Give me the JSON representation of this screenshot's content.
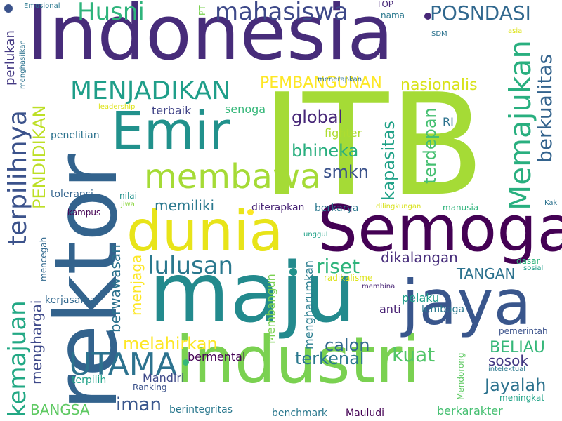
{
  "words": [
    {
      "text": "ITB",
      "color": "#a5db36",
      "vertical": false
    },
    {
      "text": "Indonesia",
      "color": "#472c7a",
      "vertical": false
    },
    {
      "text": "rektor",
      "color": "#33638d",
      "vertical": true
    },
    {
      "text": "maju",
      "color": "#238a8d",
      "vertical": false
    },
    {
      "text": "industri",
      "color": "#7ad151",
      "vertical": false
    },
    {
      "text": "Semoga",
      "color": "#440154",
      "vertical": false
    },
    {
      "text": "jaya",
      "color": "#39568c",
      "vertical": false
    },
    {
      "text": "dunia",
      "color": "#e8e419",
      "vertical": false
    },
    {
      "text": "Emir",
      "color": "#21918c",
      "vertical": false
    },
    {
      "text": "membawa",
      "color": "#a5db36",
      "vertical": false
    },
    {
      "text": "UTAMA",
      "color": "#2c728e",
      "vertical": false
    },
    {
      "text": "Memajukan",
      "color": "#29af7f",
      "vertical": true
    },
    {
      "text": "kemajuan",
      "color": "#22a884",
      "vertical": true
    },
    {
      "text": "terpilihnya",
      "color": "#3b528b",
      "vertical": true
    },
    {
      "text": "MENJADIKAN",
      "color": "#1f9e89",
      "vertical": false
    },
    {
      "text": "mahasiswa",
      "color": "#3e4989",
      "vertical": false
    },
    {
      "text": "lulusan",
      "color": "#2a788e",
      "vertical": false
    },
    {
      "text": "Husni",
      "color": "#2fb47c",
      "vertical": false
    },
    {
      "text": "POSNDASI",
      "color": "#31688e",
      "vertical": false
    },
    {
      "text": "berkualitas",
      "color": "#33638d",
      "vertical": true
    },
    {
      "text": "kapasitas",
      "color": "#1fa187",
      "vertical": true
    },
    {
      "text": "terdepan",
      "color": "#44bf70",
      "vertical": true
    },
    {
      "text": "global",
      "color": "#482878",
      "vertical": false
    },
    {
      "text": "bhineka",
      "color": "#29af7f",
      "vertical": false
    },
    {
      "text": "smkn",
      "color": "#3b528b",
      "vertical": false
    },
    {
      "text": "PENDIDIKAN",
      "color": "#bddf26",
      "vertical": true
    },
    {
      "text": "PEMBANGUNAN",
      "color": "#fde725",
      "vertical": false
    },
    {
      "text": "nasionalis",
      "color": "#d8e219",
      "vertical": false
    },
    {
      "text": "riset",
      "color": "#2fb47c",
      "vertical": false
    },
    {
      "text": "calon",
      "color": "#31688e",
      "vertical": false
    },
    {
      "text": "kuat",
      "color": "#52c569",
      "vertical": false
    },
    {
      "text": "iman",
      "color": "#39568c",
      "vertical": false
    },
    {
      "text": "melahirkan",
      "color": "#fde725",
      "vertical": false
    },
    {
      "text": "terkenal",
      "color": "#2a788e",
      "vertical": false
    },
    {
      "text": "Jayalah",
      "color": "#2c728e",
      "vertical": false
    },
    {
      "text": "BELIAU",
      "color": "#35b779",
      "vertical": false
    },
    {
      "text": "BANGSA",
      "color": "#5ec962",
      "vertical": false
    },
    {
      "text": "sosok",
      "color": "#443983",
      "vertical": false
    },
    {
      "text": "menghargai",
      "color": "#3e4989",
      "vertical": true
    },
    {
      "text": "berwawasan",
      "color": "#2c728e",
      "vertical": true
    },
    {
      "text": "menjaga",
      "color": "#fde725",
      "vertical": true
    },
    {
      "text": "memiliki",
      "color": "#2a788e",
      "vertical": false
    },
    {
      "text": "TANGAN",
      "color": "#2c728e",
      "vertical": false
    },
    {
      "text": "dikalangan",
      "color": "#472d7b",
      "vertical": false
    },
    {
      "text": "mengharumkan",
      "color": "#287c8e",
      "vertical": true
    },
    {
      "text": "Membangun",
      "color": "#7ad151",
      "vertical": true
    },
    {
      "text": "bermental",
      "color": "#440154",
      "vertical": false
    },
    {
      "text": "perlukan",
      "color": "#443983",
      "vertical": true
    },
    {
      "text": "terbaik",
      "color": "#414487",
      "vertical": false
    },
    {
      "text": "senoga",
      "color": "#35b779",
      "vertical": false
    },
    {
      "text": "fighter",
      "color": "#addc30",
      "vertical": false
    },
    {
      "text": "RI",
      "color": "#2c728e",
      "vertical": false
    },
    {
      "text": "pelaku",
      "color": "#1f9e89",
      "vertical": false
    },
    {
      "text": "anti",
      "color": "#482173",
      "vertical": false
    },
    {
      "text": "Mandiri",
      "color": "#3e4989",
      "vertical": false
    },
    {
      "text": "diterapkan",
      "color": "#482475",
      "vertical": false
    },
    {
      "text": "kerjasama",
      "color": "#31688e",
      "vertical": false
    },
    {
      "text": "penelitian",
      "color": "#2c728e",
      "vertical": false
    },
    {
      "text": "toleransi",
      "color": "#33638d",
      "vertical": false
    },
    {
      "text": "nilai",
      "color": "#21918c",
      "vertical": false
    },
    {
      "text": "berkarya",
      "color": "#2a788e",
      "vertical": false
    },
    {
      "text": "lembaga",
      "color": "#2a788e",
      "vertical": false
    },
    {
      "text": "pemerintah",
      "color": "#3b528b",
      "vertical": false
    },
    {
      "text": "berintegritas",
      "color": "#2a788e",
      "vertical": false
    },
    {
      "text": "benchmark",
      "color": "#2a788e",
      "vertical": false
    },
    {
      "text": "Mauludi",
      "color": "#440154",
      "vertical": false
    },
    {
      "text": "berkarakter",
      "color": "#44bf70",
      "vertical": false
    },
    {
      "text": "Ranking",
      "color": "#3b528b",
      "vertical": false
    },
    {
      "text": "terpilih",
      "color": "#1fa187",
      "vertical": false
    },
    {
      "text": "meningkat",
      "color": "#20a386",
      "vertical": false
    },
    {
      "text": "Mendorong",
      "color": "#5ec962",
      "vertical": true
    },
    {
      "text": "mencegah",
      "color": "#31688e",
      "vertical": true
    },
    {
      "text": "manusia",
      "color": "#2fb47c",
      "vertical": false
    },
    {
      "text": "dasar",
      "color": "#2fb47c",
      "vertical": false
    },
    {
      "text": "sosial",
      "color": "#1f9e89",
      "vertical": false
    },
    {
      "text": "unggul",
      "color": "#1fa187",
      "vertical": false
    },
    {
      "text": "radikalisme",
      "color": "#dde318",
      "vertical": false
    },
    {
      "text": "membina",
      "color": "#482475",
      "vertical": false
    },
    {
      "text": "intelektual",
      "color": "#2a788e",
      "vertical": false
    },
    {
      "text": "Kak",
      "color": "#2c728e",
      "vertical": false
    },
    {
      "text": "bibit",
      "color": "#2fb47c",
      "vertical": true
    },
    {
      "text": "dilingkungan",
      "color": "#d8e219",
      "vertical": false
    },
    {
      "text": "kampus",
      "color": "#440154",
      "vertical": false
    },
    {
      "text": "jiwa",
      "color": "#8fd744",
      "vertical": false
    },
    {
      "text": "menerapkan",
      "color": "#2c728e",
      "vertical": false
    },
    {
      "text": "SDM",
      "color": "#2c728e",
      "vertical": false
    },
    {
      "text": "asia",
      "color": "#dde318",
      "vertical": false
    },
    {
      "text": "TOP",
      "color": "#482878",
      "vertical": false
    },
    {
      "text": "nama",
      "color": "#2a788e",
      "vertical": false
    },
    {
      "text": "PT",
      "color": "#7ad151",
      "vertical": true
    },
    {
      "text": "leadership",
      "color": "#dde318",
      "vertical": false
    },
    {
      "text": "Emosional",
      "color": "#2a788e",
      "vertical": false
    },
    {
      "text": "menghasilkan",
      "color": "#2c728e",
      "vertical": true
    }
  ],
  "dots": [
    {
      "color": "#3b528b"
    },
    {
      "color": "#21918c"
    },
    {
      "color": "#35b779"
    },
    {
      "color": "#fde725"
    },
    {
      "color": "#482878"
    }
  ]
}
